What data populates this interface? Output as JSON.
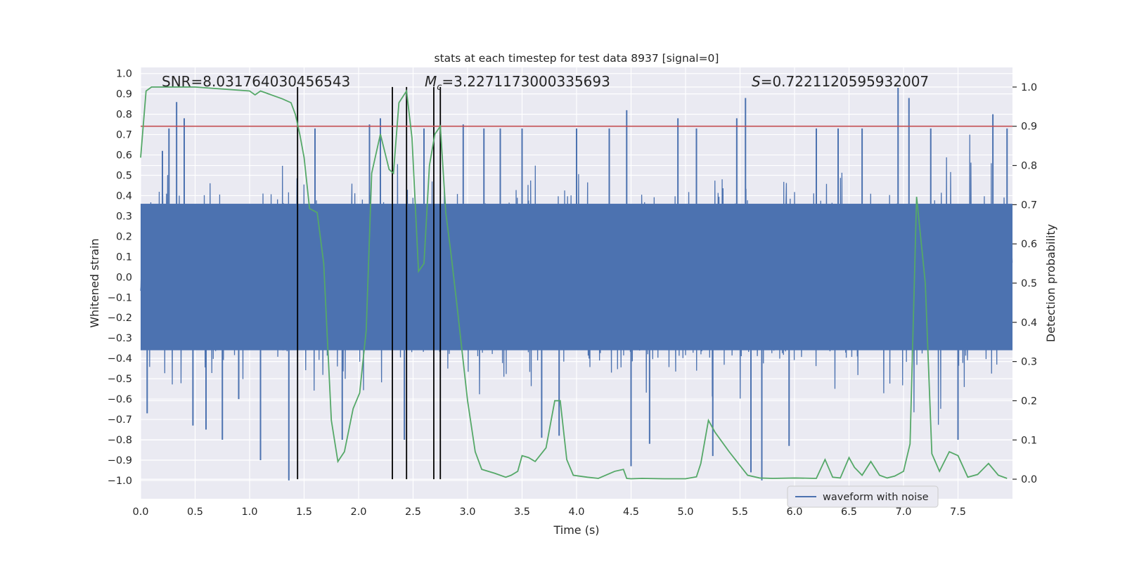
{
  "chart_data": {
    "type": "line",
    "title": "stats at each timestep for test data 8937 [signal=0]",
    "xlabel": "Time (s)",
    "ylabel_left": "Whitened strain",
    "ylabel_right": "Detection probability",
    "xlim": [
      0.0,
      8.0
    ],
    "ylim_left": [
      -1.09,
      1.03
    ],
    "ylim_right": [
      -0.05,
      1.05
    ],
    "x_ticks": [
      "0.0",
      "0.5",
      "1.0",
      "1.5",
      "2.0",
      "2.5",
      "3.0",
      "3.5",
      "4.0",
      "4.5",
      "5.0",
      "5.5",
      "6.0",
      "6.5",
      "7.0",
      "7.5"
    ],
    "y_left_ticks": [
      "1.0",
      "0.9",
      "0.8",
      "0.7",
      "0.6",
      "0.5",
      "0.4",
      "0.3",
      "0.2",
      "0.1",
      "0.0",
      "−0.1",
      "−0.2",
      "−0.3",
      "−0.4",
      "−0.5",
      "−0.6",
      "−0.7",
      "−0.8",
      "−0.9",
      "−1.0"
    ],
    "y_right_ticks": [
      "1.0",
      "0.9",
      "0.8",
      "0.7",
      "0.6",
      "0.5",
      "0.4",
      "0.3",
      "0.2",
      "0.1",
      "0.0"
    ],
    "annotations": {
      "snr": "SNR=8.031764030456543",
      "mc_symbol": "M",
      "mc_subscript": "c",
      "mc_value": "=3.2271173000335693",
      "s_symbol": "S",
      "s_value": "=0.7221120595932007"
    },
    "legend": {
      "label": "waveform with noise",
      "placement": "lower-right"
    },
    "threshold": {
      "value": 0.9,
      "axis": "right",
      "color": "#c44e52"
    },
    "event_lines": [
      1.44,
      2.31,
      2.44,
      2.69,
      2.75
    ],
    "waveform": {
      "name": "waveform with noise",
      "color": "#4c72b0",
      "t_start": 0.0,
      "t_end": 8.0,
      "typical_abs": 0.36,
      "peak_markers": [
        {
          "t": 0.06,
          "v": -0.67
        },
        {
          "t": 0.2,
          "v": 0.62
        },
        {
          "t": 0.26,
          "v": 0.73
        },
        {
          "t": 0.33,
          "v": 0.86
        },
        {
          "t": 0.4,
          "v": 0.78
        },
        {
          "t": 0.48,
          "v": -0.73
        },
        {
          "t": 0.6,
          "v": -0.75
        },
        {
          "t": 0.75,
          "v": -0.8
        },
        {
          "t": 0.9,
          "v": -0.6
        },
        {
          "t": 1.1,
          "v": -0.9
        },
        {
          "t": 1.36,
          "v": -1.0
        },
        {
          "t": 1.6,
          "v": 0.73
        },
        {
          "t": 1.85,
          "v": -0.8
        },
        {
          "t": 2.1,
          "v": 0.75
        },
        {
          "t": 2.2,
          "v": 0.78
        },
        {
          "t": 2.42,
          "v": -0.8
        },
        {
          "t": 2.6,
          "v": 0.73
        },
        {
          "t": 2.96,
          "v": 0.75
        },
        {
          "t": 3.15,
          "v": 0.73
        },
        {
          "t": 3.3,
          "v": 0.73
        },
        {
          "t": 3.5,
          "v": 0.73
        },
        {
          "t": 3.68,
          "v": -0.79
        },
        {
          "t": 3.84,
          "v": -0.78
        },
        {
          "t": 4.0,
          "v": 0.73
        },
        {
          "t": 4.3,
          "v": 0.73
        },
        {
          "t": 4.46,
          "v": 0.82
        },
        {
          "t": 4.5,
          "v": -0.93
        },
        {
          "t": 4.67,
          "v": -0.82
        },
        {
          "t": 4.93,
          "v": 0.78
        },
        {
          "t": 5.1,
          "v": 0.73
        },
        {
          "t": 5.25,
          "v": -0.88
        },
        {
          "t": 5.47,
          "v": 0.78
        },
        {
          "t": 5.55,
          "v": 0.88
        },
        {
          "t": 5.6,
          "v": -0.96
        },
        {
          "t": 5.7,
          "v": -1.0
        },
        {
          "t": 5.95,
          "v": -0.83
        },
        {
          "t": 6.2,
          "v": 0.73
        },
        {
          "t": 6.4,
          "v": 0.73
        },
        {
          "t": 6.62,
          "v": 0.73
        },
        {
          "t": 6.95,
          "v": 0.93
        },
        {
          "t": 7.05,
          "v": 0.88
        },
        {
          "t": 7.25,
          "v": 0.73
        },
        {
          "t": 7.5,
          "v": -0.8
        },
        {
          "t": 7.82,
          "v": 0.8
        },
        {
          "t": 7.95,
          "v": 0.73
        }
      ]
    },
    "detection_probability": {
      "name": "detection probability",
      "color": "#55a868",
      "x": [
        0.0,
        0.05,
        0.1,
        0.2,
        0.5,
        1.0,
        1.05,
        1.1,
        1.3,
        1.38,
        1.42,
        1.46,
        1.5,
        1.55,
        1.62,
        1.68,
        1.75,
        1.81,
        1.87,
        1.95,
        2.01,
        2.07,
        2.12,
        2.2,
        2.28,
        2.32,
        2.37,
        2.44,
        2.49,
        2.55,
        2.6,
        2.65,
        2.7,
        2.75,
        2.8,
        2.85,
        2.9,
        3.0,
        3.07,
        3.13,
        3.25,
        3.35,
        3.4,
        3.46,
        3.5,
        3.56,
        3.62,
        3.72,
        3.8,
        3.85,
        3.91,
        3.97,
        4.1,
        4.2,
        4.35,
        4.43,
        4.46,
        4.5,
        4.6,
        4.8,
        5.0,
        5.1,
        5.14,
        5.21,
        5.27,
        5.4,
        5.57,
        5.68,
        5.8,
        6.0,
        6.2,
        6.28,
        6.35,
        6.42,
        6.5,
        6.55,
        6.62,
        6.7,
        6.78,
        6.85,
        6.92,
        7.0,
        7.06,
        7.12,
        7.2,
        7.26,
        7.33,
        7.42,
        7.5,
        7.59,
        7.68,
        7.78,
        7.87,
        7.95
      ],
      "y": [
        0.82,
        0.99,
        1.0,
        1.0,
        1.0,
        0.99,
        0.98,
        0.99,
        0.97,
        0.96,
        0.93,
        0.88,
        0.82,
        0.69,
        0.68,
        0.55,
        0.15,
        0.045,
        0.07,
        0.18,
        0.22,
        0.38,
        0.78,
        0.88,
        0.79,
        0.78,
        0.96,
        0.99,
        0.87,
        0.53,
        0.55,
        0.8,
        0.88,
        0.9,
        0.68,
        0.57,
        0.45,
        0.2,
        0.07,
        0.025,
        0.015,
        0.005,
        0.01,
        0.02,
        0.06,
        0.055,
        0.045,
        0.08,
        0.2,
        0.2,
        0.05,
        0.01,
        0.005,
        0.002,
        0.02,
        0.025,
        0.002,
        0.001,
        0.002,
        0.001,
        0.001,
        0.006,
        0.04,
        0.15,
        0.12,
        0.07,
        0.01,
        0.003,
        0.002,
        0.003,
        0.002,
        0.05,
        0.005,
        0.003,
        0.055,
        0.03,
        0.01,
        0.045,
        0.01,
        0.003,
        0.008,
        0.02,
        0.09,
        0.72,
        0.5,
        0.065,
        0.02,
        0.07,
        0.06,
        0.005,
        0.012,
        0.04,
        0.01,
        0.002
      ]
    }
  }
}
